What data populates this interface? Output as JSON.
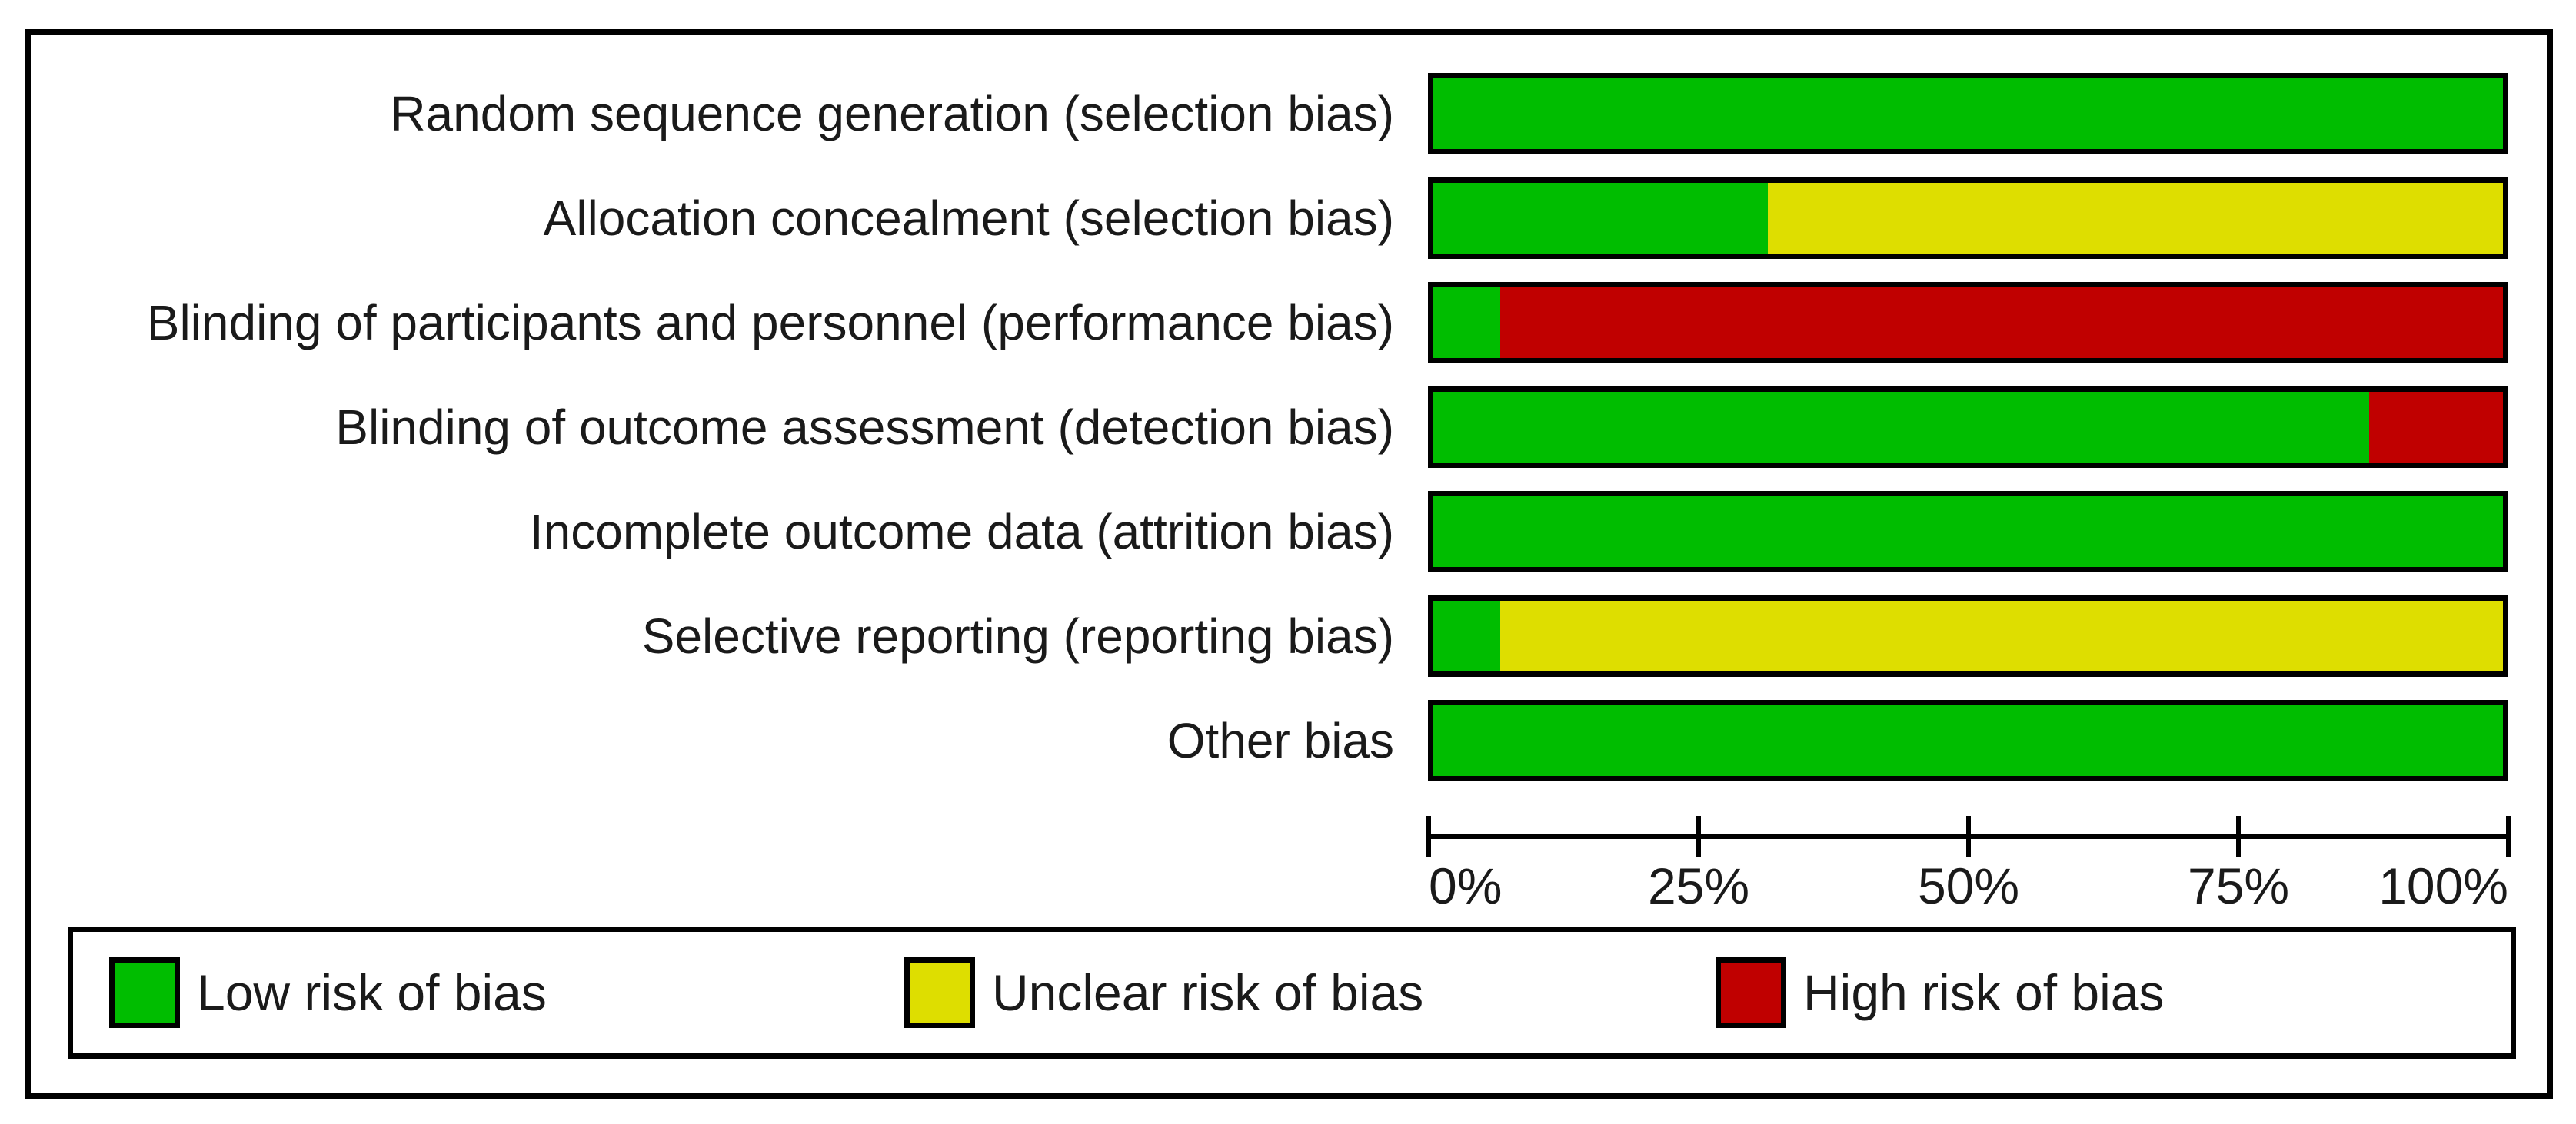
{
  "figure": {
    "kind": "risk-of-bias-graph"
  },
  "colors": {
    "low": "#00BD00",
    "unclear": "#DEDE00",
    "high": "#C00000",
    "border": "#000000",
    "text": "#1a1a1a",
    "background": "#ffffff"
  },
  "legend": {
    "items": [
      {
        "key": "low",
        "label": "Low risk of bias"
      },
      {
        "key": "unclear",
        "label": "Unclear risk of bias"
      },
      {
        "key": "high",
        "label": "High risk of bias"
      }
    ]
  },
  "chart_data": {
    "type": "bar",
    "orientation": "horizontal-stacked",
    "title": "",
    "xlabel": "",
    "ylabel": "",
    "xlim": [
      0,
      100
    ],
    "x_ticks": [
      "0%",
      "25%",
      "50%",
      "75%",
      "100%"
    ],
    "grid": false,
    "legend_position": "bottom",
    "categories": [
      "Random sequence generation (selection bias)",
      "Allocation concealment (selection bias)",
      "Blinding of participants and personnel (performance bias)",
      "Blinding of outcome assessment (detection bias)",
      "Incomplete outcome data (attrition bias)",
      "Selective reporting (reporting bias)",
      "Other bias"
    ],
    "series": [
      {
        "name": "Low risk of bias",
        "color_key": "low",
        "values": [
          100,
          31.25,
          6.25,
          87.5,
          100,
          6.25,
          100
        ]
      },
      {
        "name": "Unclear risk of bias",
        "color_key": "unclear",
        "values": [
          0,
          68.75,
          0,
          0,
          0,
          93.75,
          0
        ]
      },
      {
        "name": "High risk of bias",
        "color_key": "high",
        "values": [
          0,
          0,
          93.75,
          12.5,
          0,
          0,
          0
        ]
      }
    ]
  }
}
